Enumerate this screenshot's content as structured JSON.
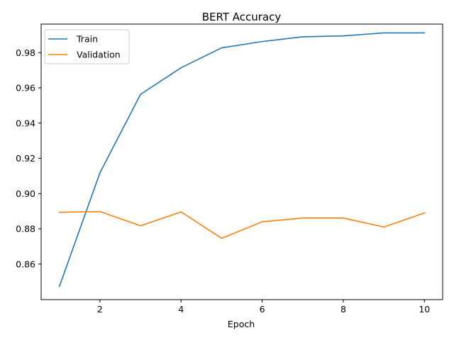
{
  "chart_data": {
    "type": "line",
    "title": "BERT Accuracy",
    "xlabel": "Epoch",
    "ylabel": "",
    "x": [
      1,
      2,
      3,
      4,
      5,
      6,
      7,
      8,
      9,
      10
    ],
    "xlim": [
      0.55,
      10.45
    ],
    "ylim": [
      0.8398,
      0.9962
    ],
    "xticks": [
      2,
      4,
      6,
      8,
      10
    ],
    "xtick_labels": [
      "2",
      "4",
      "6",
      "8",
      "10"
    ],
    "yticks": [
      0.86,
      0.88,
      0.9,
      0.92,
      0.94,
      0.96,
      0.98
    ],
    "ytick_labels": [
      "0.86",
      "0.88",
      "0.90",
      "0.92",
      "0.94",
      "0.96",
      "0.98"
    ],
    "grid": false,
    "legend_position": "upper-left",
    "series": [
      {
        "name": "Train",
        "color": "#1f77b4",
        "values": [
          0.8473,
          0.9118,
          0.9563,
          0.9714,
          0.9827,
          0.9863,
          0.989,
          0.9895,
          0.9912,
          0.9912
        ]
      },
      {
        "name": "Validation",
        "color": "#ff7f0e",
        "values": [
          0.8894,
          0.8898,
          0.8817,
          0.8896,
          0.8746,
          0.884,
          0.8861,
          0.8861,
          0.881,
          0.889
        ]
      }
    ]
  }
}
